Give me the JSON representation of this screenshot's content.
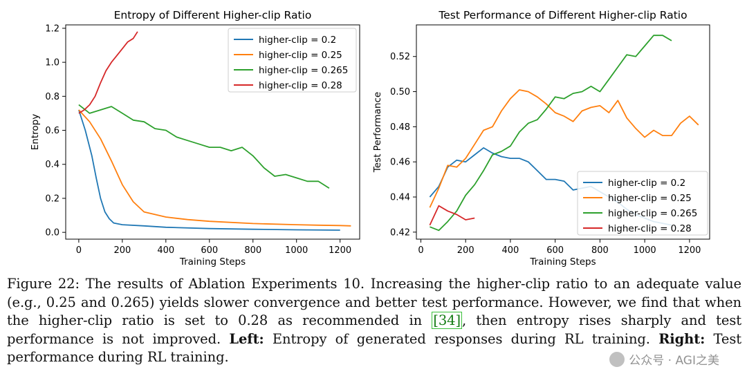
{
  "chart_data": [
    {
      "type": "line",
      "title": "Entropy of Different Higher-clip Ratio",
      "xlabel": "Training Steps",
      "ylabel": "Entropy",
      "xlim": [
        -60,
        1290
      ],
      "ylim": [
        -0.04,
        1.22
      ],
      "xticks": [
        0,
        200,
        400,
        600,
        800,
        1000,
        1200
      ],
      "yticks": [
        0.0,
        0.2,
        0.4,
        0.6,
        0.8,
        1.0,
        1.2
      ],
      "ytick_labels": [
        "0.0",
        "0.2",
        "0.4",
        "0.6",
        "0.8",
        "1.0",
        "1.2"
      ],
      "legend_position": "upper-right",
      "series": [
        {
          "name": "higher-clip = 0.2",
          "color": "#1f77b4",
          "x": [
            0,
            30,
            60,
            80,
            100,
            120,
            140,
            160,
            200,
            300,
            400,
            600,
            800,
            1000,
            1200
          ],
          "y": [
            0.72,
            0.6,
            0.45,
            0.32,
            0.2,
            0.12,
            0.08,
            0.055,
            0.045,
            0.038,
            0.03,
            0.022,
            0.018,
            0.015,
            0.013
          ]
        },
        {
          "name": "higher-clip = 0.25",
          "color": "#ff7f0e",
          "x": [
            0,
            50,
            100,
            150,
            200,
            250,
            300,
            400,
            500,
            600,
            800,
            1000,
            1100,
            1200,
            1250
          ],
          "y": [
            0.72,
            0.65,
            0.55,
            0.42,
            0.28,
            0.18,
            0.12,
            0.09,
            0.075,
            0.065,
            0.052,
            0.045,
            0.042,
            0.04,
            0.038
          ]
        },
        {
          "name": "higher-clip = 0.265",
          "color": "#2ca02c",
          "x": [
            0,
            50,
            100,
            150,
            200,
            250,
            300,
            350,
            400,
            450,
            500,
            550,
            600,
            650,
            700,
            750,
            800,
            850,
            900,
            950,
            1000,
            1050,
            1100,
            1150
          ],
          "y": [
            0.75,
            0.7,
            0.72,
            0.74,
            0.7,
            0.66,
            0.65,
            0.61,
            0.6,
            0.56,
            0.54,
            0.52,
            0.5,
            0.5,
            0.48,
            0.5,
            0.45,
            0.38,
            0.33,
            0.34,
            0.32,
            0.3,
            0.3,
            0.26
          ]
        },
        {
          "name": "higher-clip = 0.28",
          "color": "#d62728",
          "x": [
            0,
            25,
            50,
            75,
            100,
            125,
            150,
            175,
            200,
            225,
            250,
            270
          ],
          "y": [
            0.7,
            0.72,
            0.75,
            0.8,
            0.88,
            0.95,
            1.0,
            1.04,
            1.08,
            1.12,
            1.14,
            1.18
          ]
        }
      ]
    },
    {
      "type": "line",
      "title": "Test Performance of Different Higher-clip Ratio",
      "xlabel": "Training Steps",
      "ylabel": "Test Performance",
      "xlim": [
        -20,
        1290
      ],
      "ylim": [
        0.416,
        0.538
      ],
      "xticks": [
        0,
        200,
        400,
        600,
        800,
        1000,
        1200
      ],
      "yticks": [
        0.42,
        0.44,
        0.46,
        0.48,
        0.5,
        0.52
      ],
      "ytick_labels": [
        "0.42",
        "0.44",
        "0.46",
        "0.48",
        "0.50",
        "0.52"
      ],
      "legend_position": "lower-right",
      "series": [
        {
          "name": "higher-clip = 0.2",
          "color": "#1f77b4",
          "x": [
            40,
            80,
            120,
            160,
            200,
            240,
            280,
            320,
            360,
            400,
            440,
            480,
            520,
            560,
            600,
            640,
            680,
            720,
            760,
            800,
            840,
            880,
            920,
            960,
            1000,
            1040,
            1080,
            1120
          ],
          "y": [
            0.44,
            0.446,
            0.457,
            0.461,
            0.46,
            0.464,
            0.468,
            0.465,
            0.463,
            0.462,
            0.462,
            0.46,
            0.455,
            0.45,
            0.45,
            0.449,
            0.444,
            0.445,
            0.446,
            0.443,
            0.44,
            0.437,
            0.433,
            0.43,
            0.428,
            0.426,
            0.425,
            0.424
          ]
        },
        {
          "name": "higher-clip = 0.25",
          "color": "#ff7f0e",
          "x": [
            40,
            80,
            120,
            160,
            200,
            240,
            280,
            320,
            360,
            400,
            440,
            480,
            520,
            560,
            600,
            640,
            680,
            720,
            760,
            800,
            840,
            880,
            920,
            960,
            1000,
            1040,
            1080,
            1120,
            1160,
            1200,
            1240
          ],
          "y": [
            0.434,
            0.445,
            0.458,
            0.457,
            0.462,
            0.47,
            0.478,
            0.48,
            0.489,
            0.496,
            0.501,
            0.5,
            0.497,
            0.493,
            0.488,
            0.486,
            0.483,
            0.489,
            0.491,
            0.492,
            0.488,
            0.495,
            0.485,
            0.479,
            0.474,
            0.478,
            0.475,
            0.475,
            0.482,
            0.486,
            0.481
          ]
        },
        {
          "name": "higher-clip = 0.265",
          "color": "#2ca02c",
          "x": [
            40,
            80,
            120,
            160,
            200,
            240,
            280,
            320,
            360,
            400,
            440,
            480,
            520,
            560,
            600,
            640,
            680,
            720,
            760,
            800,
            840,
            880,
            920,
            960,
            1000,
            1040,
            1080,
            1120
          ],
          "y": [
            0.423,
            0.421,
            0.426,
            0.432,
            0.441,
            0.447,
            0.455,
            0.464,
            0.466,
            0.469,
            0.477,
            0.482,
            0.484,
            0.49,
            0.497,
            0.496,
            0.499,
            0.5,
            0.503,
            0.5,
            0.507,
            0.514,
            0.521,
            0.52,
            0.526,
            0.532,
            0.532,
            0.529
          ]
        },
        {
          "name": "higher-clip = 0.28",
          "color": "#d62728",
          "x": [
            40,
            80,
            120,
            160,
            200,
            240
          ],
          "y": [
            0.424,
            0.435,
            0.432,
            0.43,
            0.427,
            0.428
          ]
        }
      ]
    }
  ],
  "caption": {
    "fig_label": "Figure 22: ",
    "text_1": "The results of Ablation Experiments 10. Increasing the higher-clip ratio to an adequate value (e.g., 0.25 and 0.265) yields slower convergence and better test performance. However, we find that when the higher-clip ratio is set to 0.28 as recommended in ",
    "ref": "[34]",
    "text_2": ", then entropy rises sharply and test performance is not improved. ",
    "left_label": "Left:",
    "left_text": " Entropy of generated responses during RL training. ",
    "right_label": "Right:",
    "right_text": " Test performance during RL training."
  },
  "watermark": "公众号 · AGI之美"
}
